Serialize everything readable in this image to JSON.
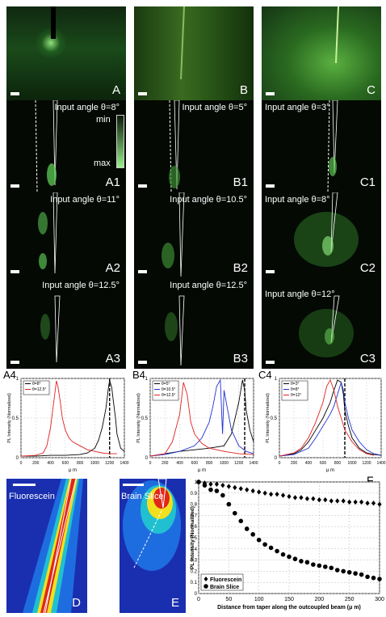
{
  "images_row0": [
    {
      "label": "A"
    },
    {
      "label": "B"
    },
    {
      "label": "C"
    }
  ],
  "panels_row1": [
    {
      "label": "A1",
      "angle": "Input angle θ=8°"
    },
    {
      "label": "B1",
      "angle": "Input angle θ=5°"
    },
    {
      "label": "C1",
      "angle": "Input angle θ=3°"
    }
  ],
  "panels_row2": [
    {
      "label": "A2",
      "angle": "Input angle θ=11°"
    },
    {
      "label": "B2",
      "angle": "Input angle θ=10.5°"
    },
    {
      "label": "C2",
      "angle": "Input angle θ=8°"
    }
  ],
  "panels_row3": [
    {
      "label": "A3",
      "angle": "Input angle θ=12.5°"
    },
    {
      "label": "B3",
      "angle": "Input angle θ=12.5°"
    },
    {
      "label": "C3",
      "angle": "Input angle θ=12°"
    }
  ],
  "colorbar_a1": {
    "min": "min",
    "max": "max"
  },
  "colors": {
    "red": "#e02020",
    "blue": "#2030d0",
    "black": "#000000",
    "green": "#7fe06a"
  },
  "chart_data": [
    {
      "label": "A4",
      "type": "line",
      "ylabel": "PL Intensity (Normalized)",
      "xlabel": "μ m",
      "xlim": [
        0,
        1400
      ],
      "ylim": [
        0,
        1
      ],
      "xticks": [
        "0",
        "200",
        "400",
        "600",
        "800",
        "1000",
        "1200",
        "1400"
      ],
      "yticks": [
        "0",
        "0.5",
        "1"
      ],
      "legend": [
        "θ=8°",
        "θ=12.5°"
      ],
      "series": [
        {
          "name": "θ=8°",
          "color": "#000000",
          "x": [
            0,
            200,
            400,
            600,
            800,
            900,
            1000,
            1050,
            1100,
            1150,
            1180,
            1200,
            1230,
            1250,
            1280,
            1300,
            1350,
            1400
          ],
          "y": [
            0.02,
            0.02,
            0.03,
            0.03,
            0.04,
            0.06,
            0.12,
            0.22,
            0.38,
            0.62,
            0.85,
            0.98,
            0.88,
            0.72,
            0.5,
            0.3,
            0.12,
            0.08
          ]
        },
        {
          "name": "θ=12.5°",
          "color": "#e02020",
          "x": [
            0,
            200,
            300,
            350,
            400,
            450,
            480,
            500,
            530,
            560,
            600,
            650,
            700,
            800,
            900,
            1000,
            1100,
            1200,
            1300
          ],
          "y": [
            0.02,
            0.03,
            0.06,
            0.15,
            0.38,
            0.75,
            0.97,
            0.9,
            0.72,
            0.5,
            0.35,
            0.25,
            0.2,
            0.15,
            0.1,
            0.08,
            0.06,
            0.05,
            0.05
          ]
        }
      ],
      "vline_x": 1200
    },
    {
      "label": "B4",
      "type": "line",
      "ylabel": "PL Intensity (Normalized)",
      "xlabel": "μ m",
      "xlim": [
        0,
        1400
      ],
      "ylim": [
        0,
        1
      ],
      "xticks": [
        "0",
        "200",
        "400",
        "600",
        "800",
        "1000",
        "1200",
        "1400"
      ],
      "yticks": [
        "0",
        "0.5",
        "1"
      ],
      "legend": [
        "θ=5°",
        "θ=10.5°",
        "θ=12.5°"
      ],
      "series": [
        {
          "name": "θ=5°",
          "color": "#000000",
          "x": [
            0,
            200,
            400,
            600,
            800,
            1000,
            1100,
            1200,
            1250,
            1280,
            1300,
            1350,
            1400
          ],
          "y": [
            0.02,
            0.05,
            0.08,
            0.1,
            0.12,
            0.15,
            0.3,
            0.7,
            0.98,
            0.85,
            0.6,
            0.35,
            0.2
          ]
        },
        {
          "name": "θ=10.5°",
          "color": "#2030d0",
          "x": [
            0,
            200,
            400,
            600,
            700,
            800,
            850,
            900,
            950,
            980,
            1000,
            1050,
            1100,
            1200,
            1300,
            1400
          ],
          "y": [
            0.02,
            0.04,
            0.08,
            0.15,
            0.25,
            0.45,
            0.65,
            0.9,
            0.98,
            0.3,
            0.85,
            0.6,
            0.35,
            0.15,
            0.08,
            0.05
          ]
        },
        {
          "name": "θ=12.5°",
          "color": "#e02020",
          "x": [
            0,
            200,
            300,
            400,
            450,
            500,
            550,
            600,
            700,
            800,
            900,
            1000,
            1200,
            1400
          ],
          "y": [
            0.02,
            0.05,
            0.2,
            0.55,
            0.95,
            0.8,
            0.45,
            0.3,
            0.18,
            0.12,
            0.1,
            0.08,
            0.05,
            0.04
          ]
        }
      ],
      "vline_x": 1280
    },
    {
      "label": "C4",
      "type": "line",
      "ylabel": "PL Intensity (Normalized)",
      "xlabel": "μ m",
      "xlim": [
        0,
        1400
      ],
      "ylim": [
        0,
        1
      ],
      "xticks": [
        "0",
        "200",
        "400",
        "600",
        "800",
        "1000",
        "1200",
        "1400"
      ],
      "yticks": [
        "0",
        "0.5",
        "1"
      ],
      "legend": [
        "θ=3°",
        "θ=8°",
        "θ=12°"
      ],
      "series": [
        {
          "name": "θ=3°",
          "color": "#000000",
          "x": [
            0,
            200,
            300,
            400,
            500,
            600,
            700,
            750,
            800,
            850,
            880,
            900,
            950,
            1000,
            1100,
            1200,
            1300,
            1400
          ],
          "y": [
            0.02,
            0.05,
            0.1,
            0.2,
            0.35,
            0.5,
            0.7,
            0.85,
            0.98,
            0.95,
            0.8,
            0.6,
            0.4,
            0.25,
            0.12,
            0.06,
            0.04,
            0.03
          ]
        },
        {
          "name": "θ=8°",
          "color": "#2030d0",
          "x": [
            0,
            200,
            400,
            500,
            600,
            700,
            750,
            800,
            850,
            880,
            900,
            950,
            1000,
            1100,
            1200,
            1300,
            1400
          ],
          "y": [
            0.02,
            0.04,
            0.12,
            0.25,
            0.4,
            0.55,
            0.65,
            0.8,
            0.95,
            0.85,
            0.7,
            0.5,
            0.35,
            0.2,
            0.1,
            0.05,
            0.03
          ]
        },
        {
          "name": "θ=12°",
          "color": "#e02020",
          "x": [
            0,
            200,
            300,
            400,
            500,
            600,
            650,
            700,
            750,
            800,
            850,
            900,
            1000,
            1100,
            1200,
            1300
          ],
          "y": [
            0.02,
            0.06,
            0.12,
            0.25,
            0.45,
            0.7,
            0.9,
            0.98,
            0.85,
            0.65,
            0.5,
            0.35,
            0.2,
            0.1,
            0.05,
            0.03
          ]
        }
      ],
      "vline_x": 900
    },
    {
      "label": "F",
      "type": "scatter",
      "ylabel": "PL Intensity (Normalized)",
      "xlabel": "Distance from taper along the outcoupled beam (μ m)",
      "xlim": [
        0,
        300
      ],
      "ylim": [
        0,
        1
      ],
      "xticks": [
        "0",
        "50",
        "100",
        "150",
        "200",
        "250",
        "300"
      ],
      "yticks": [
        "0",
        "0.1",
        "0.2",
        "0.3",
        "0.4",
        "0.5",
        "0.6",
        "0.7",
        "0.8",
        "0.9",
        "1"
      ],
      "legend": [
        "Fluorescein",
        "Brain Slice"
      ],
      "series": [
        {
          "name": "Fluorescein",
          "marker": "diamond",
          "x": [
            0,
            10,
            20,
            30,
            40,
            50,
            60,
            70,
            80,
            90,
            100,
            110,
            120,
            130,
            140,
            150,
            160,
            170,
            180,
            190,
            200,
            210,
            220,
            230,
            240,
            250,
            260,
            270,
            280,
            290,
            300
          ],
          "y": [
            1.0,
            0.99,
            0.98,
            0.98,
            0.97,
            0.96,
            0.95,
            0.94,
            0.93,
            0.92,
            0.91,
            0.9,
            0.89,
            0.89,
            0.88,
            0.87,
            0.86,
            0.86,
            0.85,
            0.85,
            0.84,
            0.84,
            0.83,
            0.83,
            0.83,
            0.82,
            0.82,
            0.82,
            0.81,
            0.81,
            0.8
          ]
        },
        {
          "name": "Brain Slice",
          "marker": "circle",
          "x": [
            0,
            10,
            20,
            30,
            40,
            50,
            60,
            70,
            80,
            90,
            100,
            110,
            120,
            130,
            140,
            150,
            160,
            170,
            180,
            190,
            200,
            210,
            220,
            230,
            240,
            250,
            260,
            270,
            280,
            290,
            300
          ],
          "y": [
            1.0,
            0.97,
            0.93,
            0.92,
            0.88,
            0.8,
            0.72,
            0.65,
            0.58,
            0.53,
            0.48,
            0.44,
            0.41,
            0.38,
            0.35,
            0.33,
            0.31,
            0.29,
            0.28,
            0.26,
            0.25,
            0.24,
            0.23,
            0.21,
            0.2,
            0.19,
            0.18,
            0.17,
            0.15,
            0.14,
            0.13
          ]
        }
      ]
    }
  ],
  "bottom_left": {
    "label_d": "D",
    "label_e": "E",
    "fluorescein": "Fluorescein",
    "brain_slice": "Brain Slice",
    "cb_max": "max",
    "cb_min": "min"
  }
}
